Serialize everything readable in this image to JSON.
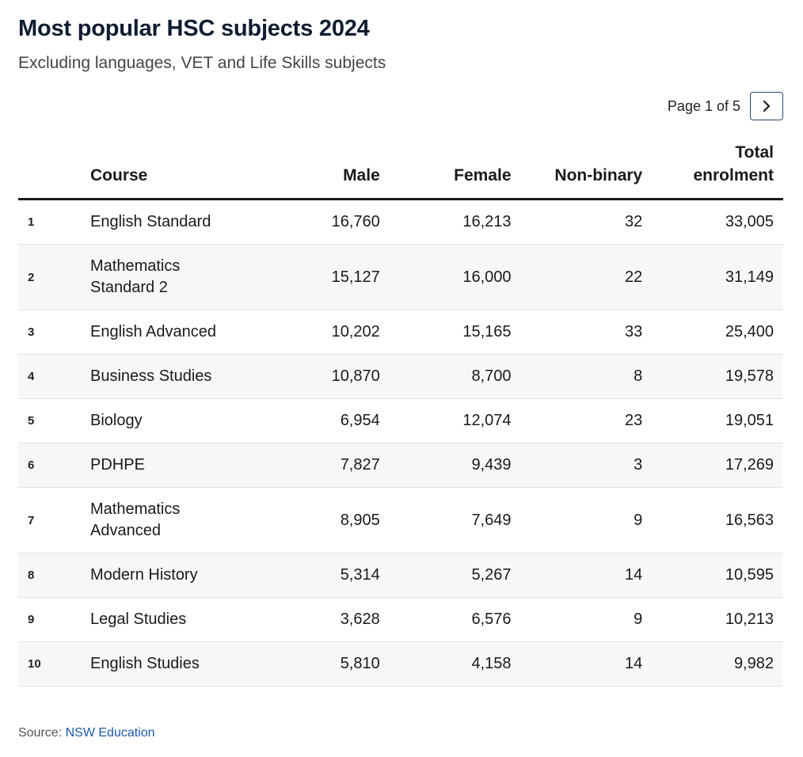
{
  "title": "Most popular HSC subjects 2024",
  "subtitle": "Excluding languages, VET and Life Skills subjects",
  "pagination": {
    "label": "Page 1 of 5",
    "next_icon": "chevron-right-icon"
  },
  "chart_data": {
    "type": "table",
    "title": "Most popular HSC subjects 2024",
    "subtitle": "Excluding languages, VET and Life Skills subjects",
    "columns": [
      "",
      "Course",
      "Male",
      "Female",
      "Non-binary",
      "Total enrolment"
    ],
    "rows": [
      {
        "rank": "1",
        "course": "English Standard",
        "male": "16,760",
        "female": "16,213",
        "nonbinary": "32",
        "total": "33,005"
      },
      {
        "rank": "2",
        "course": "Mathematics Standard 2",
        "male": "15,127",
        "female": "16,000",
        "nonbinary": "22",
        "total": "31,149"
      },
      {
        "rank": "3",
        "course": "English Advanced",
        "male": "10,202",
        "female": "15,165",
        "nonbinary": "33",
        "total": "25,400"
      },
      {
        "rank": "4",
        "course": "Business Studies",
        "male": "10,870",
        "female": "8,700",
        "nonbinary": "8",
        "total": "19,578"
      },
      {
        "rank": "5",
        "course": "Biology",
        "male": "6,954",
        "female": "12,074",
        "nonbinary": "23",
        "total": "19,051"
      },
      {
        "rank": "6",
        "course": "PDHPE",
        "male": "7,827",
        "female": "9,439",
        "nonbinary": "3",
        "total": "17,269"
      },
      {
        "rank": "7",
        "course": "Mathematics Advanced",
        "male": "8,905",
        "female": "7,649",
        "nonbinary": "9",
        "total": "16,563"
      },
      {
        "rank": "8",
        "course": "Modern History",
        "male": "5,314",
        "female": "5,267",
        "nonbinary": "14",
        "total": "10,595"
      },
      {
        "rank": "9",
        "course": "Legal Studies",
        "male": "3,628",
        "female": "6,576",
        "nonbinary": "9",
        "total": "10,213"
      },
      {
        "rank": "10",
        "course": "English Studies",
        "male": "5,810",
        "female": "4,158",
        "nonbinary": "14",
        "total": "9,982"
      }
    ]
  },
  "source": {
    "label": "Source:",
    "link_text": "NSW Education",
    "link_color": "#1a5aa8"
  }
}
